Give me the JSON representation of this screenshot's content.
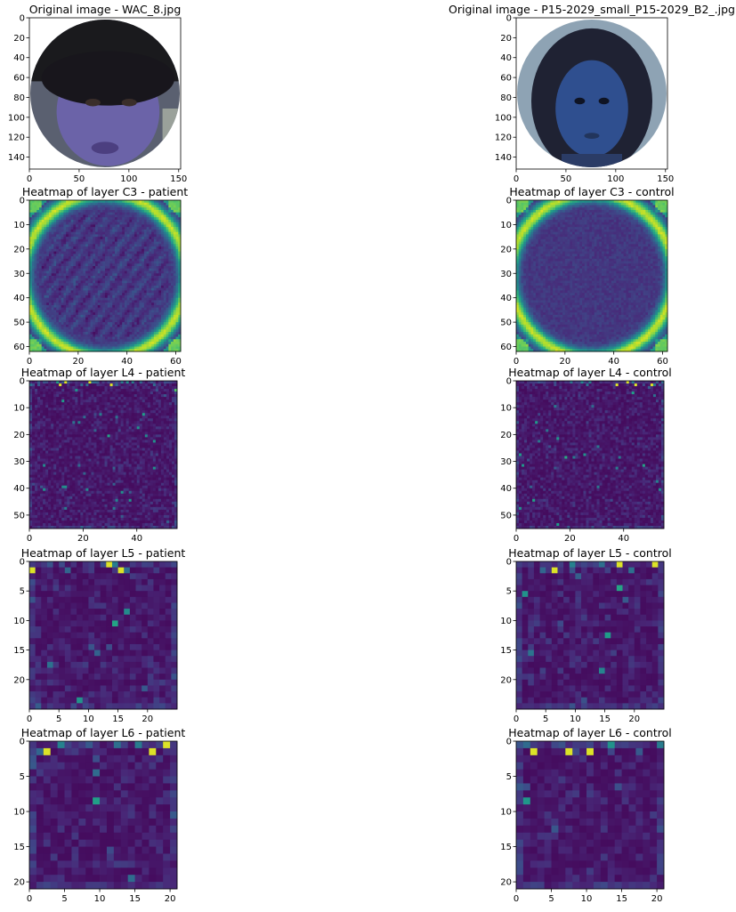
{
  "chart_data": {
    "type": "heatmap",
    "colormap": "viridis",
    "layout": "5 rows x 2 columns of image panels",
    "panels": [
      {
        "id": "orig-left",
        "title": "Original image - WAC_8.jpg",
        "kind": "photo",
        "xlim": [
          0,
          152
        ],
        "ylim": [
          152,
          0
        ],
        "xticks": [
          0,
          50,
          100,
          150
        ],
        "yticks": [
          0,
          20,
          40,
          60,
          80,
          100,
          120,
          140
        ]
      },
      {
        "id": "orig-right",
        "title": "Original image - P15-2029_small_P15-2029_B2_.jpg",
        "kind": "photo",
        "xlim": [
          0,
          152
        ],
        "ylim": [
          152,
          0
        ],
        "xticks": [
          0,
          50,
          100,
          150
        ],
        "yticks": [
          0,
          20,
          40,
          60,
          80,
          100,
          120,
          140
        ]
      },
      {
        "id": "c3-left",
        "title": "Heatmap of layer C3 - patient",
        "kind": "ring",
        "grid": 62,
        "xlim": [
          0,
          62
        ],
        "ylim": [
          62,
          0
        ],
        "xticks": [
          0,
          20,
          40,
          60
        ],
        "yticks": [
          0,
          10,
          20,
          30,
          40,
          50,
          60
        ]
      },
      {
        "id": "c3-right",
        "title": "Heatmap of layer C3 - control",
        "kind": "ring",
        "grid": 62,
        "xlim": [
          0,
          62
        ],
        "ylim": [
          62,
          0
        ],
        "xticks": [
          0,
          20,
          40,
          60
        ],
        "yticks": [
          0,
          10,
          20,
          30,
          40,
          50,
          60
        ]
      },
      {
        "id": "l4-left",
        "title": "Heatmap of layer L4 - patient",
        "kind": "grid",
        "grid": 55,
        "xlim": [
          0,
          55
        ],
        "ylim": [
          55,
          0
        ],
        "xticks": [
          0,
          20,
          40
        ],
        "yticks": [
          0,
          10,
          20,
          30,
          40,
          50
        ]
      },
      {
        "id": "l4-right",
        "title": "Heatmap of layer L4 - control",
        "kind": "grid",
        "grid": 55,
        "xlim": [
          0,
          55
        ],
        "ylim": [
          55,
          0
        ],
        "xticks": [
          0,
          20,
          40
        ],
        "yticks": [
          0,
          10,
          20,
          30,
          40,
          50
        ]
      },
      {
        "id": "l5-left",
        "title": "Heatmap of layer L5 - patient",
        "kind": "grid",
        "grid": 25,
        "xlim": [
          0,
          25
        ],
        "ylim": [
          25,
          0
        ],
        "xticks": [
          0,
          5,
          10,
          15,
          20
        ],
        "yticks": [
          0,
          5,
          10,
          15,
          20
        ]
      },
      {
        "id": "l5-right",
        "title": "Heatmap of layer L5 - control",
        "kind": "grid",
        "grid": 25,
        "xlim": [
          0,
          25
        ],
        "ylim": [
          25,
          0
        ],
        "xticks": [
          0,
          5,
          10,
          15,
          20
        ],
        "yticks": [
          0,
          5,
          10,
          15,
          20
        ]
      },
      {
        "id": "l6-left",
        "title": "Heatmap of layer L6 - patient",
        "kind": "grid",
        "grid": 21,
        "xlim": [
          0,
          21
        ],
        "ylim": [
          21,
          0
        ],
        "xticks": [
          0,
          5,
          10,
          15,
          20
        ],
        "yticks": [
          0,
          5,
          10,
          15,
          20
        ]
      },
      {
        "id": "l6-right",
        "title": "Heatmap of layer L6 - control",
        "kind": "grid",
        "grid": 21,
        "xlim": [
          0,
          21
        ],
        "ylim": [
          21,
          0
        ],
        "xticks": [
          0,
          5,
          10,
          15,
          20
        ],
        "yticks": [
          0,
          5,
          10,
          15,
          20
        ]
      }
    ],
    "colors": {
      "viridis_low": "#440154",
      "viridis_mid": "#21918c",
      "viridis_high": "#fde725",
      "left_skin": "#6b63a8",
      "right_skin": "#2f4f8f"
    }
  }
}
